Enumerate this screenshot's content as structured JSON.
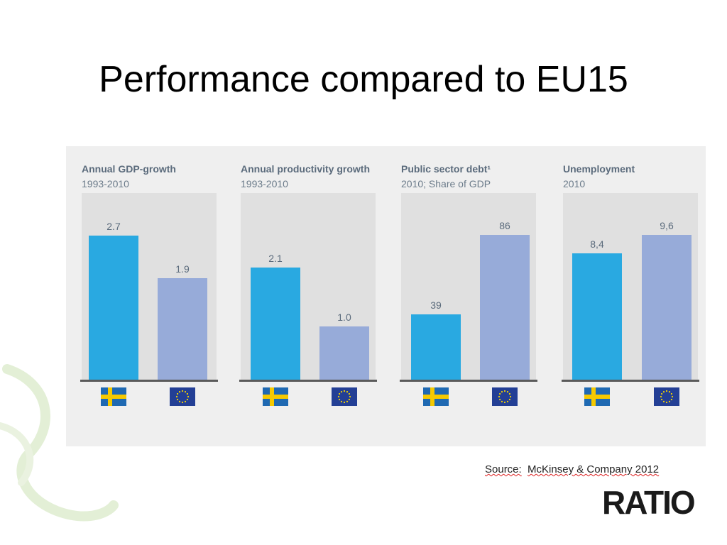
{
  "slide": {
    "title": "Performance compared to EU15",
    "source_label": "Source:",
    "source_text": "McKinsey & Company 2012",
    "logo_text": "RATIO"
  },
  "colors": {
    "sweden_bar": "#29a9e1",
    "eu_bar": "#97abd9",
    "panel_bg": "#efefef",
    "plot_bg": "#e0e0e0"
  },
  "chart_data": [
    {
      "type": "bar",
      "title": "Annual GDP-growth",
      "subtitle": "1993-2010",
      "categories": [
        "Sweden",
        "EU15"
      ],
      "values": [
        2.7,
        1.9
      ],
      "labels": [
        "2.7",
        "1.9"
      ],
      "category_icons": [
        "sweden-flag-icon",
        "eu-flag-icon"
      ],
      "ylim": [
        0,
        3.5
      ]
    },
    {
      "type": "bar",
      "title": "Annual productivity growth",
      "subtitle": "1993-2010",
      "categories": [
        "Sweden",
        "EU15"
      ],
      "values": [
        2.1,
        1.0
      ],
      "labels": [
        "2.1",
        "1.0"
      ],
      "category_icons": [
        "sweden-flag-icon",
        "eu-flag-icon"
      ],
      "ylim": [
        0,
        3.5
      ]
    },
    {
      "type": "bar",
      "title": "Public sector debt¹",
      "subtitle": "2010; Share of GDP",
      "categories": [
        "Sweden",
        "EU15"
      ],
      "values": [
        39,
        86
      ],
      "labels": [
        "39",
        "86"
      ],
      "category_icons": [
        "sweden-flag-icon",
        "eu-flag-icon"
      ],
      "ylim": [
        0,
        111
      ]
    },
    {
      "type": "bar",
      "title": "Unemployment",
      "subtitle": "2010",
      "categories": [
        "Sweden",
        "EU15"
      ],
      "values": [
        8.4,
        9.6
      ],
      "labels": [
        "8,4",
        "9,6"
      ],
      "category_icons": [
        "sweden-flag-icon",
        "eu-flag-icon"
      ],
      "ylim": [
        0,
        12.4
      ]
    }
  ]
}
